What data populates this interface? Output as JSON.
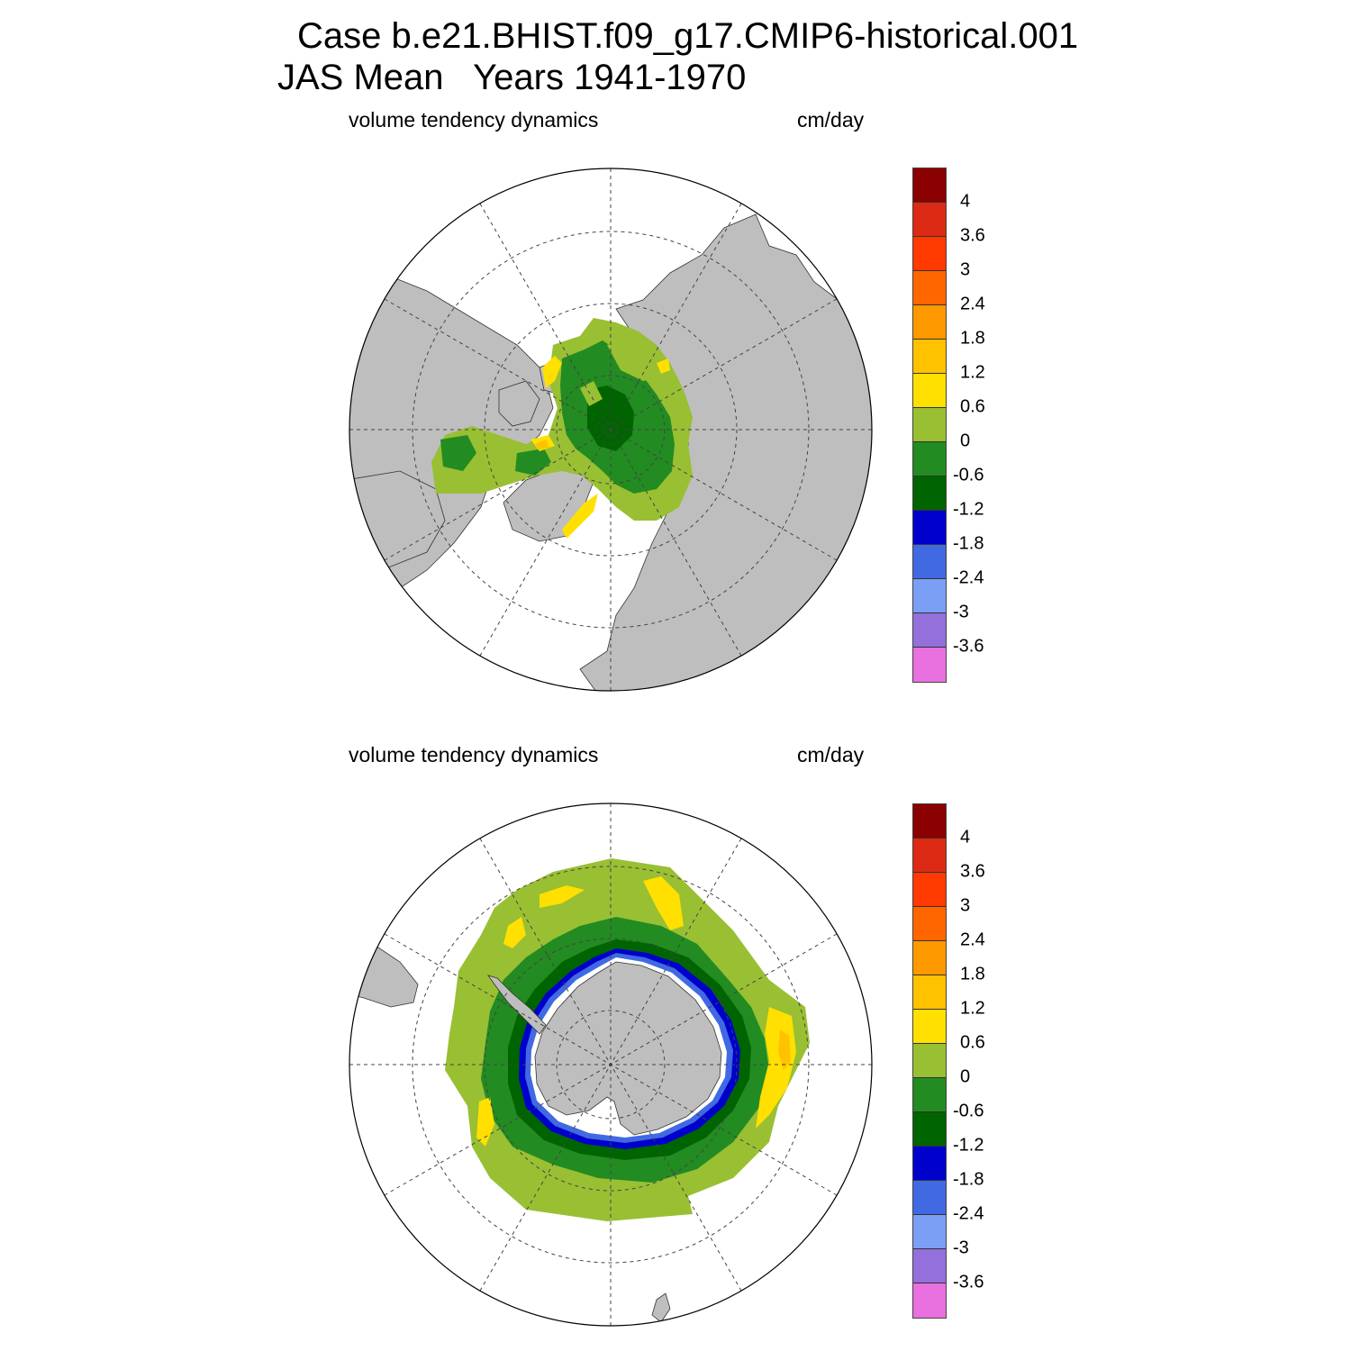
{
  "title": {
    "line1": "Case b.e21.BHIST.f09_g17.CMIP6-historical.001",
    "line2": "JAS Mean   Years 1941-1970"
  },
  "panels": [
    {
      "name": "north",
      "left_label": "volume tendency dynamics",
      "right_label": "cm/day"
    },
    {
      "name": "south",
      "left_label": "volume tendency dynamics",
      "right_label": "cm/day"
    }
  ],
  "colorbar": {
    "colors": [
      "#8b0000",
      "#dc2a14",
      "#ff3a00",
      "#ff6600",
      "#ff9900",
      "#ffc200",
      "#ffe000",
      "#99bf33",
      "#228b22",
      "#006400",
      "#0000cd",
      "#4169e1",
      "#7b9ff4",
      "#9370db",
      "#e870df"
    ],
    "labels": [
      "4",
      "3.6",
      "3",
      "2.4",
      "1.8",
      "1.2",
      "0.6",
      "0",
      "-0.6",
      "-1.2",
      "-1.8",
      "-2.4",
      "-3",
      "-3.6"
    ]
  },
  "map_colors": {
    "land": "#bebebe",
    "ocean": "#ffffff",
    "light_green": "#99bf33",
    "green": "#228b22",
    "dark_green": "#006400",
    "yellow": "#ffe000",
    "orange": "#ffc200",
    "blue": "#0000cd",
    "royal_blue": "#4169e1"
  }
}
